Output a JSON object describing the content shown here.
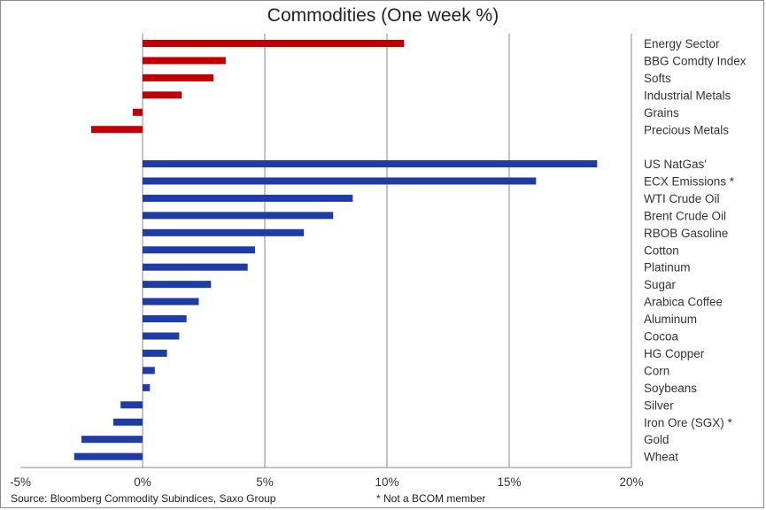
{
  "title": "Commodities (One week %)",
  "source_note": "Source: Bloomberg Commodity Subindices, Saxo Group",
  "footnote": "* Not a BCOM member",
  "colors": {
    "sector": "#c00000",
    "commodity": "#1f3ca6",
    "grid": "#8a8a8a"
  },
  "chart_data": {
    "type": "bar",
    "orientation": "horizontal",
    "title": "Commodities (One week %)",
    "xlim": [
      -5,
      20
    ],
    "xticks": [
      -5,
      0,
      5,
      10,
      15,
      20
    ],
    "xtick_labels": [
      "-5%",
      "0%",
      "5%",
      "10%",
      "15%",
      "20%"
    ],
    "grid": "vertical",
    "series": [
      {
        "group": "sector",
        "color": "#c00000",
        "categories": [
          "Energy Sector",
          "BBG Comdty Index",
          "Softs",
          "Industrial Metals",
          "Grains",
          "Precious Metals"
        ],
        "values": [
          10.7,
          3.4,
          2.9,
          1.6,
          -0.4,
          -2.1
        ]
      },
      {
        "group": "commodity",
        "color": "#1f3ca6",
        "categories": [
          "US NatGas'",
          "ECX Emissions *",
          "WTI Crude Oil",
          "Brent Crude Oil",
          "RBOB Gasoline",
          "Cotton",
          "Platinum",
          "Sugar",
          "Arabica Coffee",
          "Aluminum",
          "Cocoa",
          "HG Copper",
          "Corn",
          "Soybeans",
          "Silver",
          "Iron Ore (SGX) *",
          "Gold",
          "Wheat"
        ],
        "values": [
          18.6,
          16.1,
          8.6,
          7.8,
          6.6,
          4.6,
          4.3,
          2.8,
          2.3,
          1.8,
          1.5,
          1.0,
          0.5,
          0.3,
          -0.9,
          -1.2,
          -2.5,
          -2.8
        ]
      }
    ]
  }
}
